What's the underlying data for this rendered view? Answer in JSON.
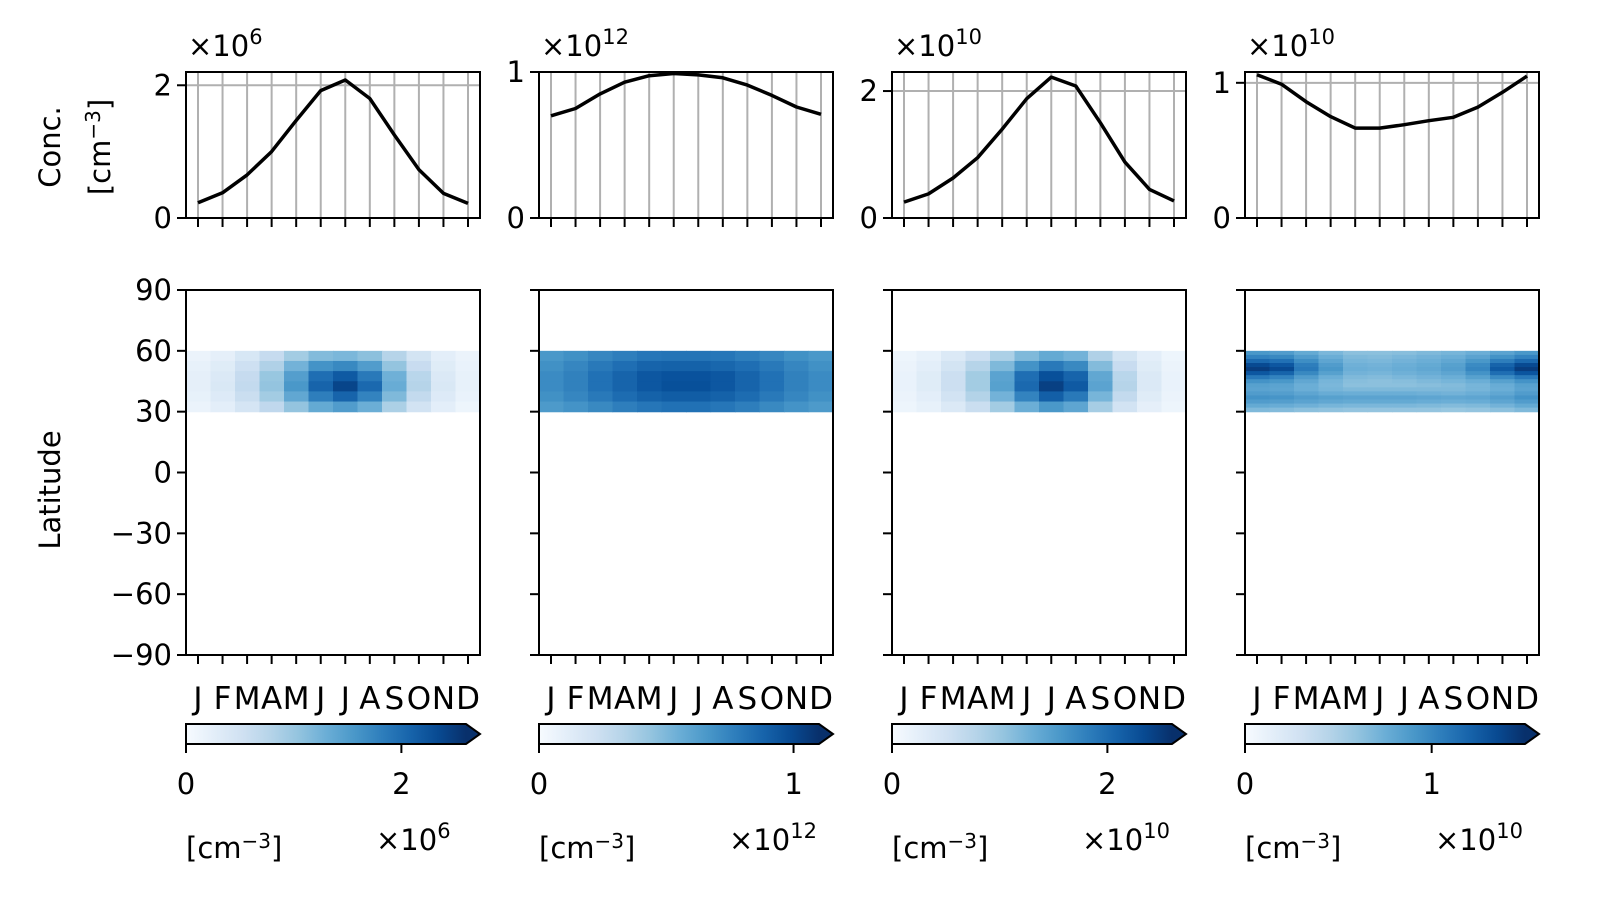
{
  "figure": {
    "months": [
      "J",
      "F",
      "M",
      "A",
      "M",
      "J",
      "J",
      "A",
      "S",
      "O",
      "N",
      "D"
    ],
    "top_ylabel_line1": "Conc.",
    "top_ylabel_line2_base": "[cm",
    "top_ylabel_line2_sup": "−3",
    "top_ylabel_line2_end": "]",
    "bottom_ylabel": "Latitude",
    "colorbar_label_base": "[cm",
    "colorbar_label_sup": "−3",
    "colorbar_label_end": "]",
    "colormap": "Blues",
    "grid_color": "#b0b0b0",
    "line_color": "#000000",
    "latitude_ticks": [
      "90",
      "60",
      "30",
      "0",
      "−30",
      "−60",
      "−90"
    ]
  },
  "chart_data": [
    {
      "type": "line",
      "panel": 1,
      "x": [
        "J",
        "F",
        "M",
        "A",
        "M",
        "J",
        "J",
        "A",
        "S",
        "O",
        "N",
        "D"
      ],
      "values": [
        0.23,
        0.38,
        0.65,
        1.0,
        1.47,
        1.92,
        2.08,
        1.8,
        1.25,
        0.73,
        0.37,
        0.22
      ],
      "offset_label": "×10",
      "offset_exp": "6",
      "ylim": [
        0,
        2.2
      ],
      "yticks": [
        0,
        2
      ],
      "ytick_labels": [
        "0",
        "2"
      ],
      "grid": true
    },
    {
      "type": "line",
      "panel": 2,
      "x": [
        "J",
        "F",
        "M",
        "A",
        "M",
        "J",
        "J",
        "A",
        "S",
        "O",
        "N",
        "D"
      ],
      "values": [
        0.7,
        0.75,
        0.85,
        0.93,
        0.975,
        0.99,
        0.98,
        0.96,
        0.91,
        0.84,
        0.76,
        0.71
      ],
      "offset_label": "×10",
      "offset_exp": "12",
      "ylim": [
        0,
        1.0
      ],
      "yticks": [
        0,
        1
      ],
      "ytick_labels": [
        "0",
        "1"
      ],
      "grid": true
    },
    {
      "type": "line",
      "panel": 3,
      "x": [
        "J",
        "F",
        "M",
        "A",
        "M",
        "J",
        "J",
        "A",
        "S",
        "O",
        "N",
        "D"
      ],
      "values": [
        0.25,
        0.38,
        0.63,
        0.95,
        1.4,
        1.88,
        2.22,
        2.08,
        1.5,
        0.88,
        0.45,
        0.27
      ],
      "offset_label": "×10",
      "offset_exp": "10",
      "ylim": [
        0,
        2.3
      ],
      "yticks": [
        0,
        2
      ],
      "ytick_labels": [
        "0",
        "2"
      ],
      "grid": true
    },
    {
      "type": "line",
      "panel": 4,
      "x": [
        "J",
        "F",
        "M",
        "A",
        "M",
        "J",
        "J",
        "A",
        "S",
        "O",
        "N",
        "D"
      ],
      "values": [
        1.06,
        0.99,
        0.86,
        0.75,
        0.665,
        0.665,
        0.69,
        0.72,
        0.745,
        0.82,
        0.93,
        1.05
      ],
      "offset_label": "×10",
      "offset_exp": "10",
      "ylim": [
        0,
        1.08
      ],
      "yticks": [
        0,
        1
      ],
      "ytick_labels": [
        "0",
        "1"
      ],
      "grid": true
    },
    {
      "type": "heatmap",
      "panel": 1,
      "x": [
        "J",
        "F",
        "M",
        "A",
        "M",
        "J",
        "J",
        "A",
        "S",
        "O",
        "N",
        "D"
      ],
      "y_bands": [
        [
          55,
          60
        ],
        [
          50,
          55
        ],
        [
          45,
          50
        ],
        [
          40,
          45
        ],
        [
          35,
          40
        ],
        [
          30,
          35
        ]
      ],
      "values": [
        [
          0.06,
          0.09,
          0.16,
          0.25,
          0.36,
          0.44,
          0.46,
          0.42,
          0.3,
          0.18,
          0.1,
          0.06
        ],
        [
          0.08,
          0.12,
          0.21,
          0.32,
          0.48,
          0.62,
          0.66,
          0.58,
          0.4,
          0.24,
          0.12,
          0.07
        ],
        [
          0.09,
          0.14,
          0.25,
          0.39,
          0.57,
          0.76,
          0.84,
          0.72,
          0.49,
          0.29,
          0.14,
          0.08
        ],
        [
          0.09,
          0.15,
          0.26,
          0.4,
          0.6,
          0.8,
          0.92,
          0.78,
          0.51,
          0.3,
          0.15,
          0.08
        ],
        [
          0.08,
          0.13,
          0.23,
          0.36,
          0.53,
          0.7,
          0.8,
          0.68,
          0.45,
          0.26,
          0.13,
          0.07
        ],
        [
          0.06,
          0.1,
          0.17,
          0.27,
          0.4,
          0.52,
          0.58,
          0.5,
          0.33,
          0.19,
          0.1,
          0.05
        ]
      ],
      "ylim": [
        -90,
        90
      ],
      "yticks": [
        90,
        60,
        30,
        0,
        -30,
        -60,
        -90
      ],
      "colorbar": {
        "range": [
          0,
          2.6
        ],
        "ticks": [
          0,
          2
        ],
        "tick_labels": [
          "0",
          "2"
        ],
        "offset_label": "×10",
        "offset_exp": "6",
        "extend": "max"
      }
    },
    {
      "type": "heatmap",
      "panel": 2,
      "x": [
        "J",
        "F",
        "M",
        "A",
        "M",
        "J",
        "J",
        "A",
        "S",
        "O",
        "N",
        "D"
      ],
      "y_bands": [
        [
          55,
          60
        ],
        [
          50,
          55
        ],
        [
          45,
          50
        ],
        [
          40,
          45
        ],
        [
          35,
          40
        ],
        [
          30,
          35
        ]
      ],
      "values": [
        [
          0.6,
          0.63,
          0.67,
          0.7,
          0.73,
          0.74,
          0.74,
          0.73,
          0.7,
          0.67,
          0.63,
          0.6
        ],
        [
          0.63,
          0.67,
          0.72,
          0.76,
          0.8,
          0.81,
          0.81,
          0.79,
          0.76,
          0.72,
          0.67,
          0.63
        ],
        [
          0.65,
          0.69,
          0.75,
          0.8,
          0.85,
          0.87,
          0.87,
          0.85,
          0.8,
          0.75,
          0.69,
          0.65
        ],
        [
          0.65,
          0.69,
          0.75,
          0.8,
          0.85,
          0.88,
          0.88,
          0.85,
          0.8,
          0.75,
          0.69,
          0.65
        ],
        [
          0.63,
          0.67,
          0.72,
          0.77,
          0.81,
          0.83,
          0.83,
          0.81,
          0.77,
          0.72,
          0.67,
          0.63
        ],
        [
          0.59,
          0.62,
          0.66,
          0.7,
          0.73,
          0.75,
          0.75,
          0.73,
          0.7,
          0.66,
          0.62,
          0.59
        ]
      ],
      "ylim": [
        -90,
        90
      ],
      "yticks": [
        90,
        60,
        30,
        0,
        -30,
        -60,
        -90
      ],
      "colorbar": {
        "range": [
          0,
          1.1
        ],
        "ticks": [
          0,
          1
        ],
        "tick_labels": [
          "0",
          "1"
        ],
        "offset_label": "×10",
        "offset_exp": "12",
        "extend": "max"
      }
    },
    {
      "type": "heatmap",
      "panel": 3,
      "x": [
        "J",
        "F",
        "M",
        "A",
        "M",
        "J",
        "J",
        "A",
        "S",
        "O",
        "N",
        "D"
      ],
      "y_bands": [
        [
          55,
          60
        ],
        [
          50,
          55
        ],
        [
          45,
          50
        ],
        [
          40,
          45
        ],
        [
          35,
          40
        ],
        [
          30,
          35
        ]
      ],
      "values": [
        [
          0.05,
          0.08,
          0.14,
          0.22,
          0.33,
          0.45,
          0.52,
          0.48,
          0.32,
          0.18,
          0.1,
          0.05
        ],
        [
          0.06,
          0.1,
          0.18,
          0.3,
          0.45,
          0.62,
          0.72,
          0.66,
          0.44,
          0.24,
          0.12,
          0.06
        ],
        [
          0.07,
          0.12,
          0.22,
          0.36,
          0.55,
          0.76,
          0.88,
          0.8,
          0.53,
          0.29,
          0.14,
          0.07
        ],
        [
          0.07,
          0.12,
          0.22,
          0.36,
          0.56,
          0.78,
          0.94,
          0.84,
          0.55,
          0.3,
          0.14,
          0.07
        ],
        [
          0.06,
          0.1,
          0.19,
          0.31,
          0.48,
          0.68,
          0.82,
          0.72,
          0.47,
          0.26,
          0.12,
          0.06
        ],
        [
          0.05,
          0.08,
          0.14,
          0.23,
          0.36,
          0.5,
          0.6,
          0.54,
          0.35,
          0.19,
          0.09,
          0.05
        ]
      ],
      "ylim": [
        -90,
        90
      ],
      "yticks": [
        90,
        60,
        30,
        0,
        -30,
        -60,
        -90
      ],
      "colorbar": {
        "range": [
          0,
          2.6
        ],
        "ticks": [
          0,
          2
        ],
        "tick_labels": [
          "0",
          "2"
        ],
        "offset_label": "×10",
        "offset_exp": "10",
        "extend": "max"
      }
    },
    {
      "type": "heatmap",
      "panel": 4,
      "x": [
        "J",
        "F",
        "M",
        "A",
        "M",
        "J",
        "J",
        "A",
        "S",
        "O",
        "N",
        "D"
      ],
      "y_bands": [
        [
          58,
          60
        ],
        [
          56,
          58
        ],
        [
          54,
          56
        ],
        [
          52,
          54
        ],
        [
          50,
          52
        ],
        [
          48,
          50
        ],
        [
          46,
          48
        ],
        [
          44,
          46
        ],
        [
          42,
          44
        ],
        [
          40,
          42
        ],
        [
          38,
          40
        ],
        [
          36,
          38
        ],
        [
          34,
          36
        ],
        [
          32,
          34
        ],
        [
          30,
          32
        ]
      ],
      "values": [
        [
          0.6,
          0.58,
          0.52,
          0.46,
          0.42,
          0.42,
          0.43,
          0.45,
          0.47,
          0.5,
          0.55,
          0.6
        ],
        [
          0.68,
          0.66,
          0.58,
          0.5,
          0.45,
          0.44,
          0.46,
          0.48,
          0.5,
          0.55,
          0.62,
          0.68
        ],
        [
          0.78,
          0.75,
          0.64,
          0.54,
          0.47,
          0.46,
          0.48,
          0.5,
          0.53,
          0.6,
          0.7,
          0.78
        ],
        [
          0.9,
          0.85,
          0.7,
          0.58,
          0.49,
          0.48,
          0.5,
          0.52,
          0.56,
          0.65,
          0.8,
          0.9
        ],
        [
          0.95,
          0.9,
          0.72,
          0.6,
          0.5,
          0.49,
          0.51,
          0.53,
          0.57,
          0.67,
          0.84,
          0.95
        ],
        [
          0.85,
          0.8,
          0.66,
          0.56,
          0.48,
          0.47,
          0.49,
          0.51,
          0.54,
          0.62,
          0.76,
          0.86
        ],
        [
          0.72,
          0.68,
          0.58,
          0.5,
          0.45,
          0.44,
          0.46,
          0.48,
          0.5,
          0.56,
          0.65,
          0.72
        ],
        [
          0.62,
          0.6,
          0.53,
          0.47,
          0.43,
          0.42,
          0.43,
          0.45,
          0.47,
          0.5,
          0.56,
          0.62
        ],
        [
          0.56,
          0.55,
          0.5,
          0.46,
          0.42,
          0.42,
          0.42,
          0.43,
          0.44,
          0.47,
          0.51,
          0.56
        ],
        [
          0.55,
          0.54,
          0.5,
          0.47,
          0.45,
          0.45,
          0.45,
          0.45,
          0.45,
          0.47,
          0.5,
          0.55
        ],
        [
          0.58,
          0.57,
          0.54,
          0.51,
          0.5,
          0.5,
          0.5,
          0.49,
          0.48,
          0.5,
          0.53,
          0.58
        ],
        [
          0.62,
          0.61,
          0.58,
          0.56,
          0.55,
          0.55,
          0.55,
          0.54,
          0.53,
          0.54,
          0.57,
          0.62
        ],
        [
          0.58,
          0.57,
          0.55,
          0.53,
          0.52,
          0.52,
          0.52,
          0.51,
          0.5,
          0.51,
          0.54,
          0.58
        ],
        [
          0.52,
          0.51,
          0.49,
          0.47,
          0.46,
          0.46,
          0.46,
          0.45,
          0.44,
          0.45,
          0.48,
          0.52
        ],
        [
          0.45,
          0.44,
          0.42,
          0.41,
          0.4,
          0.4,
          0.4,
          0.4,
          0.39,
          0.4,
          0.42,
          0.45
        ]
      ],
      "ylim": [
        -90,
        90
      ],
      "yticks": [
        90,
        60,
        30,
        0,
        -30,
        -60,
        -90
      ],
      "colorbar": {
        "range": [
          0,
          1.5
        ],
        "ticks": [
          0,
          1
        ],
        "tick_labels": [
          "0",
          "1"
        ],
        "offset_label": "×10",
        "offset_exp": "10",
        "extend": "max"
      }
    }
  ]
}
